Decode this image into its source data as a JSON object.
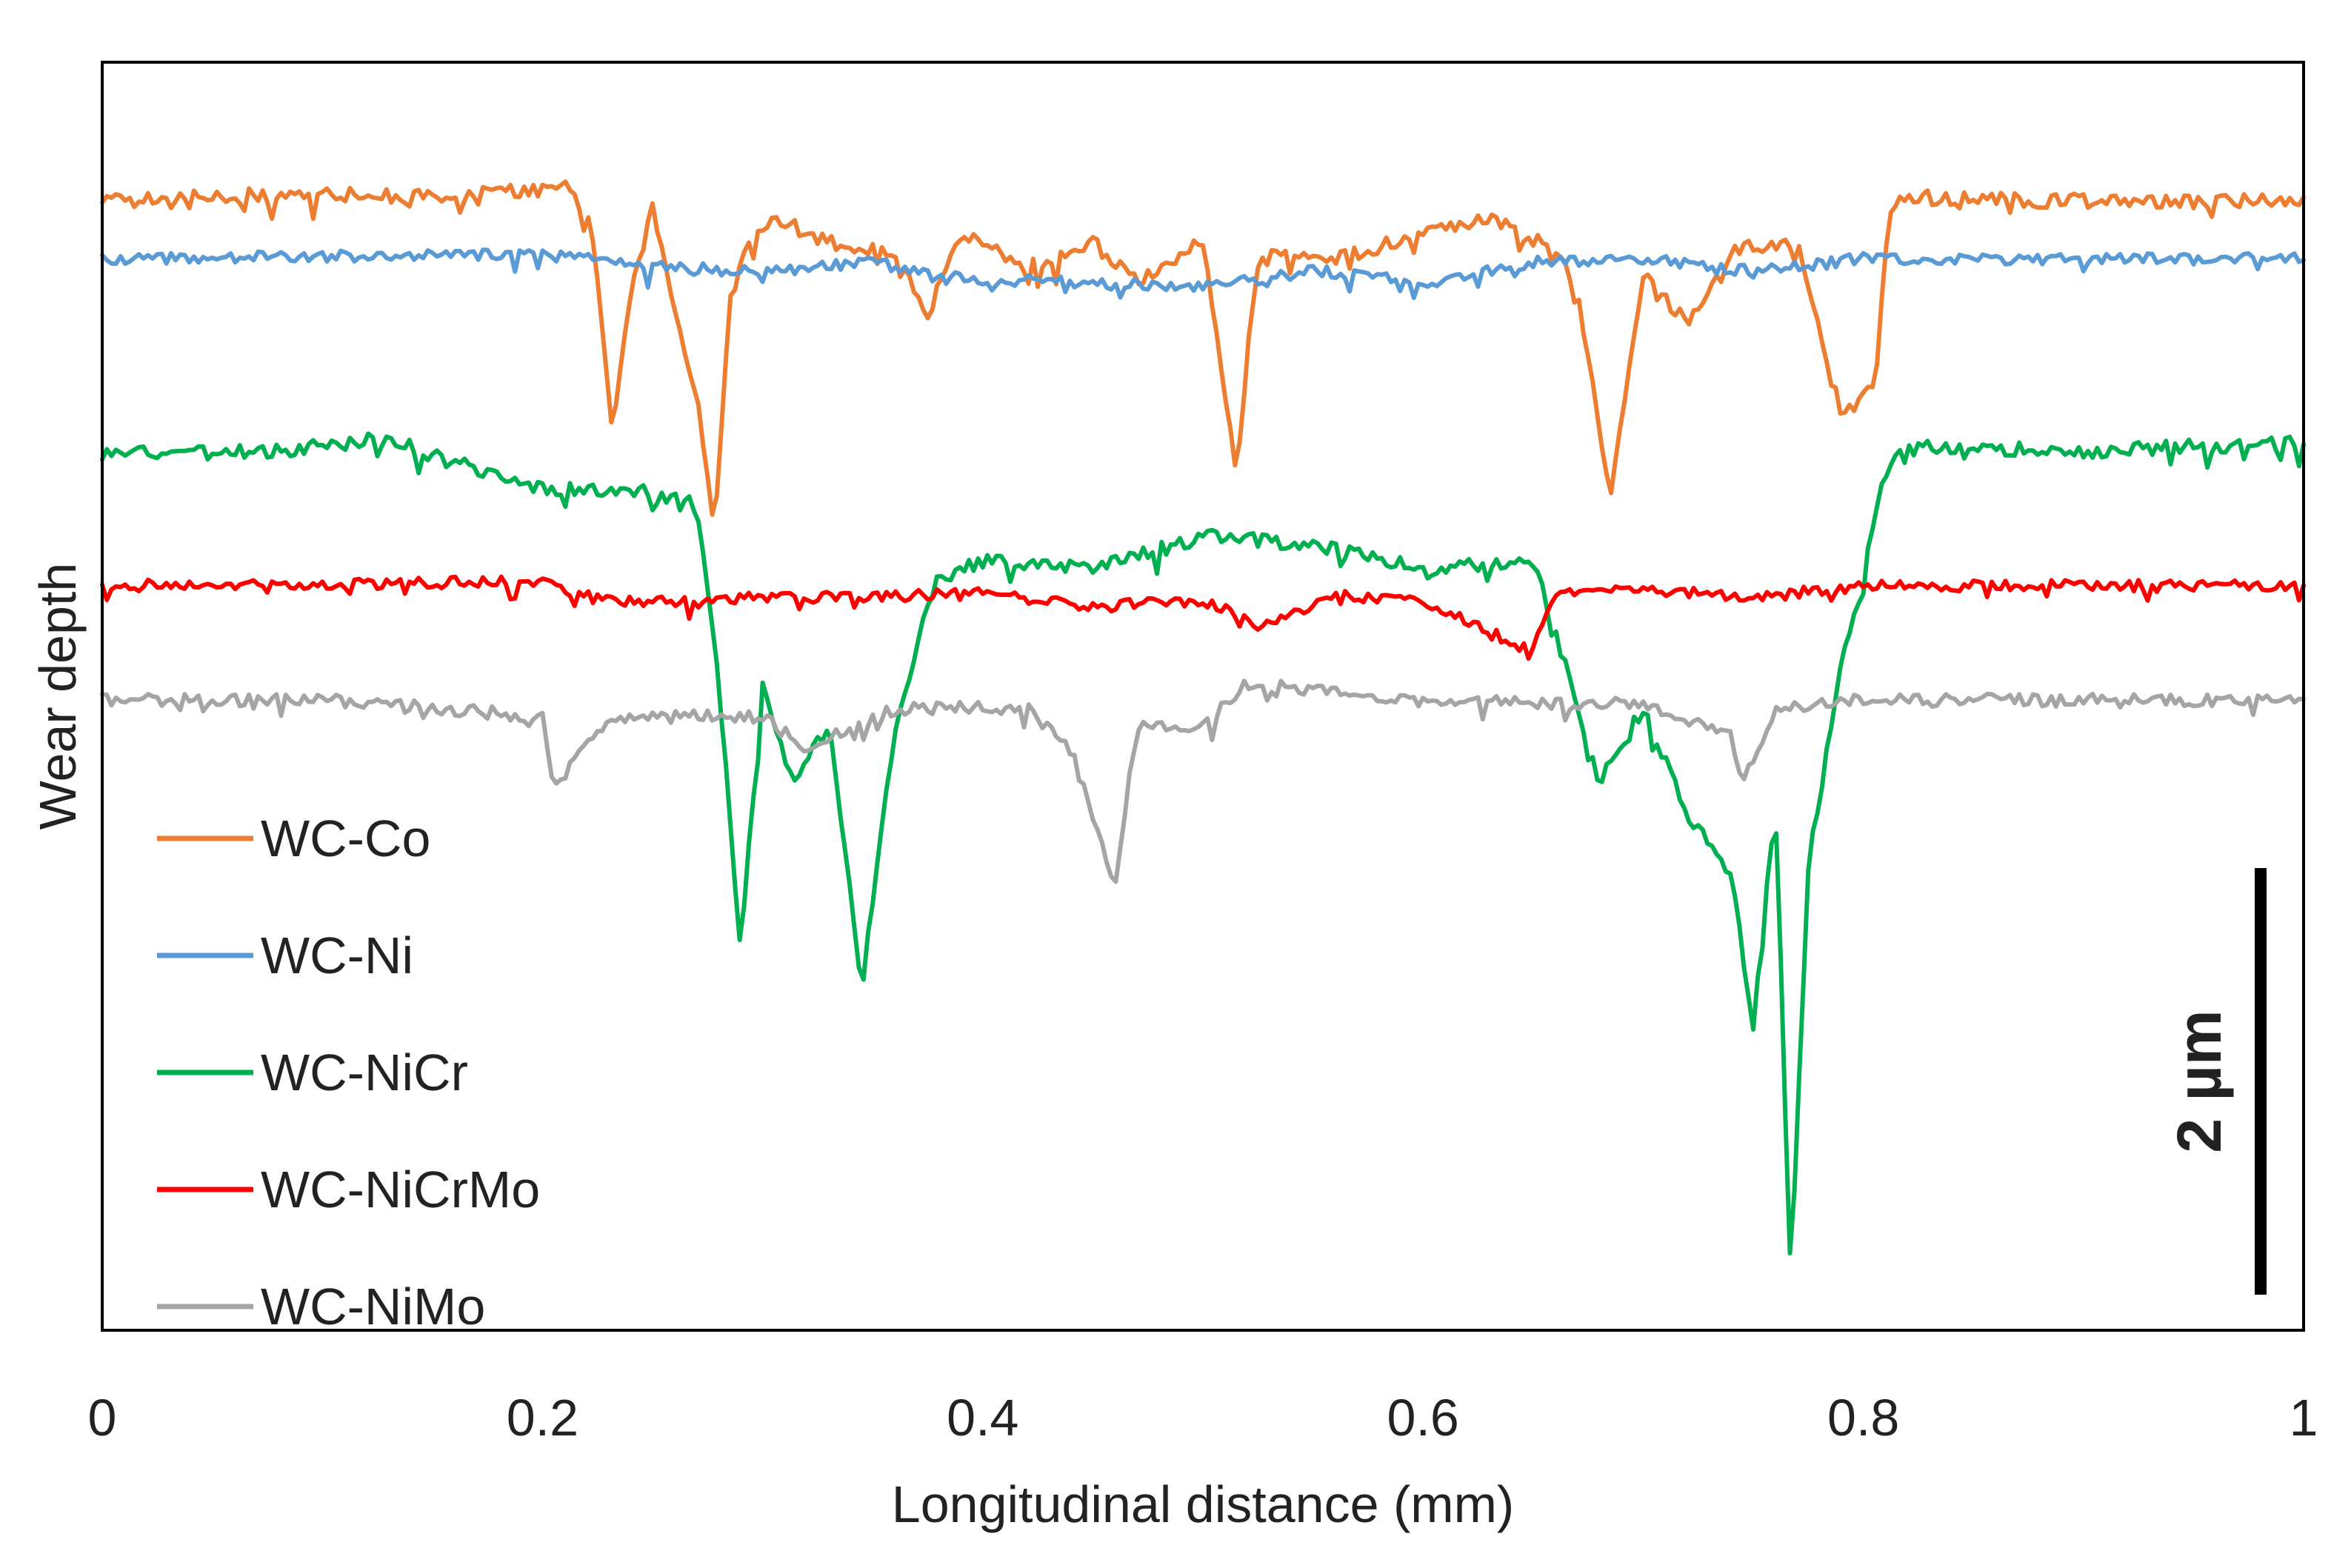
{
  "chart_data": {
    "type": "line",
    "title": "",
    "xlabel": "Longitudinal distance (mm)",
    "ylabel": "Wear depth",
    "xlim": [
      0,
      1
    ],
    "ylim": [
      -14.9,
      0.6
    ],
    "x_ticks": [
      0,
      0.2,
      0.4,
      0.6,
      0.8,
      1
    ],
    "x_tick_labels": [
      "0",
      "0.2",
      "0.4",
      "0.6",
      "0.8",
      "1"
    ],
    "y_ticks_shown": false,
    "grid": false,
    "legend_position": "bottom-left",
    "scale_bar": {
      "label": "2 µm",
      "length_um": 2
    },
    "y_unit": "µm (curves vertically offset for clarity)",
    "series": [
      {
        "name": "WC-Co",
        "color": "#ED7D31",
        "baseline": -1.1,
        "noise": 0.09,
        "points": [
          [
            0,
            -1.1
          ],
          [
            0.05,
            -1.05
          ],
          [
            0.1,
            -1.0
          ],
          [
            0.14,
            -1.05
          ],
          [
            0.2,
            -0.95
          ],
          [
            0.21,
            -0.9
          ],
          [
            0.222,
            -1.4
          ],
          [
            0.232,
            -3.9
          ],
          [
            0.24,
            -2.2
          ],
          [
            0.25,
            -1.2
          ],
          [
            0.26,
            -2.4
          ],
          [
            0.27,
            -3.5
          ],
          [
            0.274,
            -4.3
          ],
          [
            0.278,
            -5.2
          ],
          [
            0.285,
            -2.3
          ],
          [
            0.295,
            -1.5
          ],
          [
            0.305,
            -1.3
          ],
          [
            0.33,
            -1.6
          ],
          [
            0.36,
            -1.7
          ],
          [
            0.375,
            -2.5
          ],
          [
            0.39,
            -1.5
          ],
          [
            0.42,
            -1.9
          ],
          [
            0.45,
            -1.6
          ],
          [
            0.47,
            -2.1
          ],
          [
            0.5,
            -1.6
          ],
          [
            0.515,
            -4.4
          ],
          [
            0.525,
            -1.7
          ],
          [
            0.56,
            -1.8
          ],
          [
            0.6,
            -1.5
          ],
          [
            0.63,
            -1.3
          ],
          [
            0.66,
            -1.7
          ],
          [
            0.67,
            -2.2
          ],
          [
            0.685,
            -4.7
          ],
          [
            0.7,
            -2.0
          ],
          [
            0.72,
            -2.6
          ],
          [
            0.74,
            -1.7
          ],
          [
            0.77,
            -1.6
          ],
          [
            0.79,
            -3.7
          ],
          [
            0.805,
            -3.4
          ],
          [
            0.812,
            -1.2
          ],
          [
            0.82,
            -1.05
          ],
          [
            0.9,
            -1.1
          ],
          [
            1,
            -1.1
          ]
        ]
      },
      {
        "name": "WC-Ni",
        "color": "#5B9BD5",
        "baseline": -1.8,
        "noise": 0.07,
        "points": [
          [
            0,
            -1.8
          ],
          [
            0.2,
            -1.75
          ],
          [
            0.25,
            -1.9
          ],
          [
            0.3,
            -1.95
          ],
          [
            0.35,
            -1.85
          ],
          [
            0.4,
            -2.05
          ],
          [
            0.45,
            -2.1
          ],
          [
            0.5,
            -2.15
          ],
          [
            0.55,
            -1.95
          ],
          [
            0.6,
            -2.1
          ],
          [
            0.65,
            -1.85
          ],
          [
            0.7,
            -1.8
          ],
          [
            0.75,
            -1.95
          ],
          [
            0.8,
            -1.8
          ],
          [
            0.85,
            -1.8
          ],
          [
            1,
            -1.8
          ]
        ]
      },
      {
        "name": "WC-NiCr",
        "color": "#00B050",
        "baseline": -4.2,
        "noise": 0.09,
        "points": [
          [
            0,
            -4.2
          ],
          [
            0.08,
            -4.15
          ],
          [
            0.13,
            -4.0
          ],
          [
            0.16,
            -4.3
          ],
          [
            0.2,
            -4.6
          ],
          [
            0.25,
            -4.65
          ],
          [
            0.27,
            -4.8
          ],
          [
            0.28,
            -7.0
          ],
          [
            0.29,
            -10.2
          ],
          [
            0.3,
            -7.0
          ],
          [
            0.315,
            -8.2
          ],
          [
            0.33,
            -7.5
          ],
          [
            0.345,
            -10.7
          ],
          [
            0.36,
            -7.6
          ],
          [
            0.37,
            -6.5
          ],
          [
            0.38,
            -5.7
          ],
          [
            0.4,
            -5.5
          ],
          [
            0.45,
            -5.6
          ],
          [
            0.5,
            -5.2
          ],
          [
            0.55,
            -5.3
          ],
          [
            0.6,
            -5.6
          ],
          [
            0.65,
            -5.5
          ],
          [
            0.665,
            -6.8
          ],
          [
            0.68,
            -8.2
          ],
          [
            0.7,
            -7.3
          ],
          [
            0.72,
            -8.6
          ],
          [
            0.74,
            -9.3
          ],
          [
            0.75,
            -11.2
          ],
          [
            0.76,
            -8.4
          ],
          [
            0.767,
            -14.2
          ],
          [
            0.775,
            -9.2
          ],
          [
            0.79,
            -6.8
          ],
          [
            0.8,
            -5.7
          ],
          [
            0.81,
            -4.4
          ],
          [
            0.82,
            -4.1
          ],
          [
            0.9,
            -4.15
          ],
          [
            1,
            -4.05
          ]
        ]
      },
      {
        "name": "WC-NiCrMo",
        "color": "#FF0000",
        "baseline": -5.8,
        "noise": 0.07,
        "points": [
          [
            0,
            -5.8
          ],
          [
            0.2,
            -5.75
          ],
          [
            0.23,
            -6.0
          ],
          [
            0.3,
            -5.95
          ],
          [
            0.4,
            -5.9
          ],
          [
            0.45,
            -6.05
          ],
          [
            0.5,
            -6.0
          ],
          [
            0.53,
            -6.3
          ],
          [
            0.56,
            -5.9
          ],
          [
            0.6,
            -6.0
          ],
          [
            0.65,
            -6.6
          ],
          [
            0.66,
            -5.85
          ],
          [
            0.7,
            -5.85
          ],
          [
            0.75,
            -5.95
          ],
          [
            0.8,
            -5.8
          ],
          [
            1,
            -5.8
          ]
        ]
      },
      {
        "name": "WC-NiMo",
        "color": "#A5A5A5",
        "baseline": -7.2,
        "noise": 0.08,
        "points": [
          [
            0,
            -7.2
          ],
          [
            0.1,
            -7.2
          ],
          [
            0.2,
            -7.4
          ],
          [
            0.205,
            -8.3
          ],
          [
            0.23,
            -7.4
          ],
          [
            0.3,
            -7.4
          ],
          [
            0.32,
            -7.8
          ],
          [
            0.36,
            -7.3
          ],
          [
            0.42,
            -7.3
          ],
          [
            0.44,
            -7.8
          ],
          [
            0.46,
            -9.5
          ],
          [
            0.47,
            -7.5
          ],
          [
            0.5,
            -7.5
          ],
          [
            0.52,
            -7.0
          ],
          [
            0.6,
            -7.2
          ],
          [
            0.7,
            -7.25
          ],
          [
            0.74,
            -7.6
          ],
          [
            0.745,
            -8.2
          ],
          [
            0.76,
            -7.3
          ],
          [
            0.8,
            -7.2
          ],
          [
            0.9,
            -7.2
          ],
          [
            1,
            -7.2
          ]
        ]
      }
    ]
  }
}
